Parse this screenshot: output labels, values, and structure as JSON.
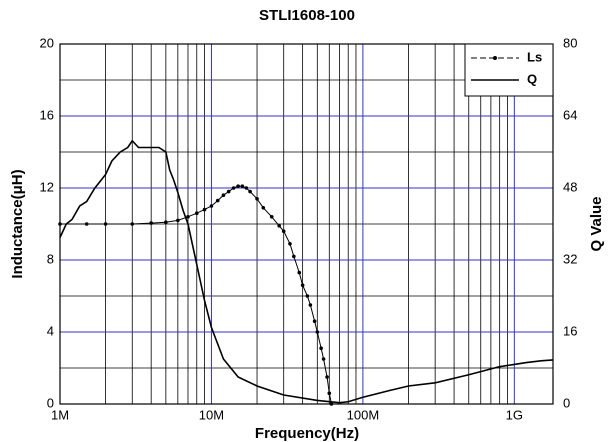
{
  "chart_data": {
    "type": "line",
    "title": "STLI1608-100",
    "xlabel": "Frequency(Hz)",
    "ylabel": "Inductance(μH)",
    "y2label": "Q Value",
    "xscale": "log",
    "xlim": [
      1000000,
      1800000000
    ],
    "xticks": [
      {
        "value": 1000000,
        "label": "1M"
      },
      {
        "value": 10000000,
        "label": "10M"
      },
      {
        "value": 100000000,
        "label": "100M"
      },
      {
        "value": 1000000000,
        "label": "1G"
      }
    ],
    "xminor_ticks": [
      2000000,
      3000000,
      4000000,
      5000000,
      6000000,
      7000000,
      8000000,
      9000000,
      20000000,
      30000000,
      40000000,
      50000000,
      60000000,
      70000000,
      80000000,
      90000000,
      200000000,
      300000000,
      400000000,
      500000000,
      600000000,
      700000000,
      800000000,
      900000000
    ],
    "ylim": [
      0,
      20
    ],
    "yticks": [
      0,
      4,
      8,
      12,
      16,
      20
    ],
    "yminor_ticks": [
      2,
      6,
      10,
      14,
      18
    ],
    "y2lim": [
      0,
      80
    ],
    "y2ticks": [
      0,
      16,
      32,
      48,
      64,
      80
    ],
    "grid": true,
    "legend": "upper right",
    "series": [
      {
        "name": "Ls",
        "color": "#000000",
        "marker": true,
        "x": [
          1000000,
          1500000,
          2000000,
          3000000,
          4000000,
          5000000,
          6000000,
          7000000,
          8000000,
          9000000,
          10000000,
          11000000,
          12000000,
          13000000,
          14000000,
          15000000,
          16000000,
          17000000,
          18000000,
          20000000,
          22000000,
          25000000,
          28000000,
          30000000,
          33000000,
          35000000,
          38000000,
          40000000,
          43000000,
          45000000,
          48000000,
          50000000,
          53000000,
          55000000,
          58000000,
          60000000,
          62000000
        ],
        "values": [
          10.0,
          10.0,
          10.0,
          10.0,
          10.05,
          10.1,
          10.2,
          10.4,
          10.6,
          10.8,
          11.0,
          11.3,
          11.6,
          11.8,
          12.0,
          12.1,
          12.1,
          12.0,
          11.8,
          11.4,
          10.9,
          10.4,
          9.9,
          9.6,
          8.9,
          8.2,
          7.3,
          6.6,
          6.0,
          5.5,
          4.6,
          4.0,
          3.1,
          2.5,
          1.5,
          0.6,
          0.0
        ]
      },
      {
        "name": "Q",
        "color": "#000000",
        "axis": "y2",
        "marker": false,
        "x": [
          1000000,
          1100000,
          1200000,
          1350000,
          1500000,
          1700000,
          2000000,
          2200000,
          2500000,
          2800000,
          3000000,
          3300000,
          3500000,
          4000000,
          4500000,
          5000000,
          5300000,
          5600000,
          6000000,
          6500000,
          7000000,
          8000000,
          9000000,
          10000000,
          12000000,
          15000000,
          20000000,
          30000000,
          50000000,
          70000000,
          80000000,
          100000000,
          150000000,
          200000000,
          300000000,
          500000000,
          800000000,
          1000000000,
          1200000000,
          1500000000,
          1800000000
        ],
        "values": [
          37,
          40,
          41,
          44,
          45,
          48,
          51,
          54,
          56,
          57,
          58.5,
          57,
          57,
          57,
          57,
          56,
          52,
          50,
          47,
          43,
          40,
          31,
          23,
          17,
          10,
          6,
          4,
          2,
          0.8,
          0.3,
          0.5,
          1.5,
          3,
          4,
          4.7,
          6.5,
          8.3,
          8.8,
          9.2,
          9.6,
          9.8
        ]
      }
    ]
  }
}
